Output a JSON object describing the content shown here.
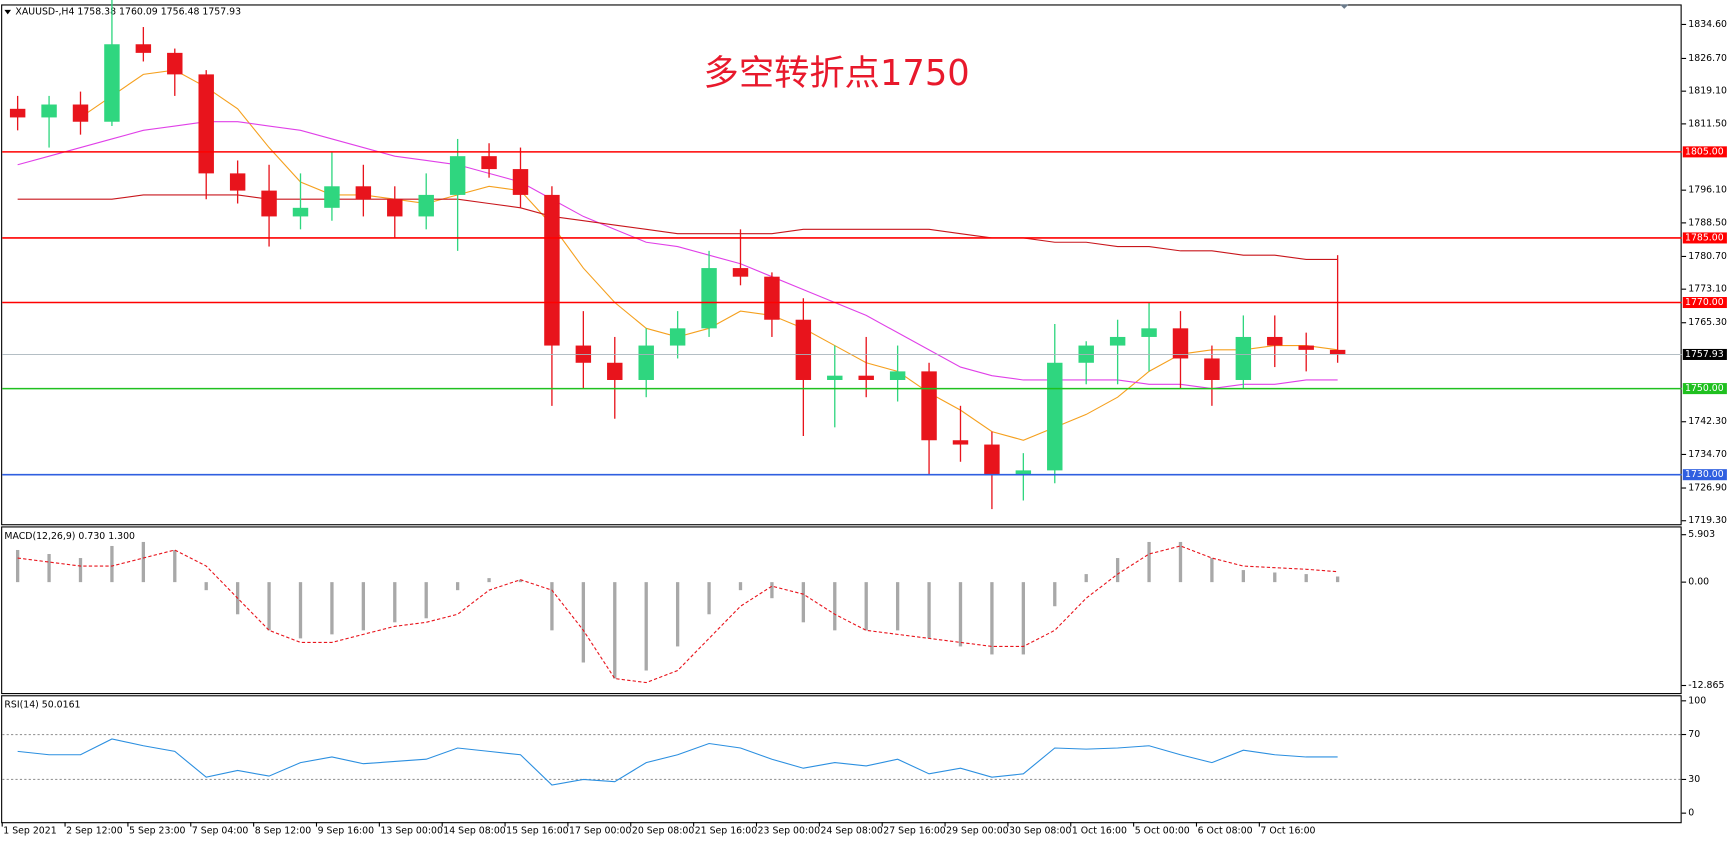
{
  "chart_data": [
    {
      "type": "candlestick",
      "title": "XAUUSD-,H4  1758.38 1760.09 1756.48 1757.93",
      "annotation": "多空转折点1750",
      "categories": [
        "1 Sep 2021",
        null,
        "2 Sep 12:00",
        null,
        "5 Sep 23:00",
        null,
        "7 Sep 04:00",
        null,
        "8 Sep 12:00",
        null,
        "9 Sep 16:00",
        null,
        "13 Sep 00:00",
        null,
        "14 Sep 08:00",
        null,
        "15 Sep 16:00",
        null,
        "17 Sep 00:00",
        null,
        "20 Sep 08:00",
        null,
        "21 Sep 16:00",
        null,
        "23 Sep 00:00",
        null,
        "24 Sep 08:00",
        null,
        "27 Sep 16:00",
        null,
        "29 Sep 00:00",
        null,
        "30 Sep 08:00",
        null,
        "1 Oct 16:00",
        null,
        "5 Oct 00:00",
        null,
        "6 Oct 08:00",
        null,
        "7 Oct 16:00",
        null,
        null
      ],
      "open": [
        1815,
        1813,
        1816,
        1812,
        1830,
        1828,
        1823,
        1800,
        1796,
        1790,
        1792,
        1797,
        1794,
        1790,
        1795,
        1804,
        1801,
        1795,
        1760,
        1756,
        1752,
        1760,
        1764,
        1778,
        1776,
        1766,
        1752,
        1753,
        1752,
        1754,
        1738,
        1737,
        1730,
        1731,
        1756,
        1760,
        1762,
        1764,
        1757,
        1752,
        1762,
        1760,
        1759
      ],
      "high": [
        1818,
        1818,
        1819,
        1842,
        1834,
        1829,
        1824,
        1803,
        1802,
        1800,
        1805,
        1802,
        1797,
        1800,
        1808,
        1807,
        1806,
        1797,
        1768,
        1762,
        1764,
        1768,
        1782,
        1787,
        1777,
        1771,
        1760,
        1762,
        1760,
        1756,
        1746,
        1740,
        1735,
        1765,
        1761,
        1766,
        1770,
        1768,
        1760,
        1767,
        1767,
        1763,
        1781
      ],
      "low": [
        1810,
        1806,
        1809,
        1811,
        1826,
        1818,
        1794,
        1793,
        1783,
        1787,
        1789,
        1790,
        1785,
        1787,
        1782,
        1799,
        1792,
        1746,
        1750,
        1743,
        1748,
        1757,
        1762,
        1774,
        1762,
        1739,
        1741,
        1748,
        1747,
        1730,
        1733,
        1722,
        1724,
        1728,
        1751,
        1751,
        1754,
        1750,
        1746,
        1750,
        1755,
        1754,
        1756
      ],
      "close": [
        1813,
        1816,
        1812,
        1830,
        1828,
        1823,
        1800,
        1796,
        1790,
        1792,
        1797,
        1794,
        1790,
        1795,
        1804,
        1801,
        1795,
        1760,
        1756,
        1752,
        1760,
        1764,
        1778,
        1776,
        1766,
        1752,
        1753,
        1752,
        1754,
        1738,
        1737,
        1730,
        1731,
        1756,
        1760,
        1762,
        1764,
        1757,
        1752,
        1762,
        1760,
        1759,
        1757.93
      ],
      "up_color": "#2fd67f",
      "down_color": "#e8141c",
      "series": [
        {
          "color": "#f5a01e",
          "values": [
            null,
            null,
            1813,
            1818,
            1823,
            1824,
            1820,
            1815,
            1806,
            1798,
            1795,
            1795,
            1794,
            1793,
            1795,
            1797,
            1796,
            1788,
            1778,
            1770,
            1764,
            1762,
            1764,
            1768,
            1767,
            1764,
            1760,
            1756,
            1754,
            1749,
            1745,
            1740,
            1738,
            1741,
            1744,
            1748,
            1754,
            1758,
            1759,
            1759,
            1760,
            1760,
            1759
          ]
        },
        {
          "color": "#e040e8",
          "values": [
            1802,
            1804,
            1806,
            1808,
            1810,
            1811,
            1812,
            1812,
            1811,
            1810,
            1808,
            1806,
            1804,
            1803,
            1802,
            1800,
            1798,
            1794,
            1790,
            1787,
            1784,
            1783,
            1781,
            1779,
            1776,
            1773,
            1770,
            1767,
            1763,
            1759,
            1755,
            1753,
            1752,
            1752,
            1752,
            1752,
            1751,
            1751,
            1750,
            1751,
            1751,
            1752,
            1752
          ]
        },
        {
          "color": "#c8161c",
          "values": [
            1794,
            1794,
            1794,
            1794,
            1795,
            1795,
            1795,
            1795,
            1794,
            1794,
            1794,
            1794,
            1794,
            1794,
            1794,
            1793,
            1792,
            1790,
            1789,
            1788,
            1787,
            1786,
            1786,
            1786,
            1786,
            1787,
            1787,
            1787,
            1787,
            1787,
            1786,
            1785,
            1785,
            1784,
            1784,
            1783,
            1783,
            1782,
            1782,
            1781,
            1781,
            1780,
            1780
          ]
        }
      ],
      "ylim": [
        1718.5,
        1839.0
      ],
      "yticks": [
        {
          "value": 1834.6,
          "label": "1834.60"
        },
        {
          "value": 1826.7,
          "label": "1826.70"
        },
        {
          "value": 1819.1,
          "label": "1819.10"
        },
        {
          "value": 1811.5,
          "label": "1811.50"
        },
        {
          "value": 1796.1,
          "label": "1796.10"
        },
        {
          "value": 1788.5,
          "label": "1788.50"
        },
        {
          "value": 1780.7,
          "label": "1780.70"
        },
        {
          "value": 1773.1,
          "label": "1773.10"
        },
        {
          "value": 1765.3,
          "label": "1765.30"
        },
        {
          "value": 1742.3,
          "label": "1742.30"
        },
        {
          "value": 1734.7,
          "label": "1734.70"
        },
        {
          "value": 1726.9,
          "label": "1726.90"
        },
        {
          "value": 1719.3,
          "label": "1719.30"
        }
      ],
      "levels": [
        {
          "value": 1805,
          "label": "1805.00",
          "color": "#ff0000",
          "line_color": "#ff0000"
        },
        {
          "value": 1785,
          "label": "1785.00",
          "color": "#ff0000",
          "line_color": "#ff0000"
        },
        {
          "value": 1770,
          "label": "1770.00",
          "color": "#ff0000",
          "line_color": "#ff0000"
        },
        {
          "value": 1757.93,
          "label": "1757.93",
          "color": "#000000",
          "line_color": "#a9b4bc"
        },
        {
          "value": 1750,
          "label": "1750.00",
          "color": "#1fc01f",
          "line_color": "#1fc01f"
        },
        {
          "value": 1730,
          "label": "1730.00",
          "color": "#2f5fe0",
          "line_color": "#2f5fe0"
        }
      ]
    },
    {
      "type": "macd",
      "title": "MACD(12,26,9) 0.730 1.300",
      "histogram": {
        "color": "#a8a8a8",
        "values": [
          4,
          3.5,
          3,
          4.5,
          5,
          4,
          -1,
          -4,
          -6,
          -7,
          -6.5,
          -6,
          -5,
          -4.5,
          -1,
          0.5,
          0.3,
          -6,
          -10,
          -12,
          -11,
          -8,
          -4,
          -1,
          -2,
          -5,
          -6,
          -6,
          -6,
          -7,
          -8,
          -9,
          -9,
          -3,
          1,
          3,
          5,
          5,
          3,
          1.5,
          1.2,
          1,
          0.7
        ]
      },
      "signal": {
        "color": "#e8141c",
        "values": [
          3,
          2.5,
          2,
          2,
          3,
          4,
          2,
          -2,
          -6,
          -7.5,
          -7.5,
          -6.5,
          -5.5,
          -5,
          -4,
          -1,
          0.3,
          -1,
          -6,
          -12,
          -12.5,
          -11,
          -7,
          -3,
          -0.5,
          -1.5,
          -4,
          -6,
          -6.5,
          -7,
          -7.5,
          -8,
          -8,
          -6,
          -2,
          1,
          3.5,
          4.5,
          3,
          2,
          1.8,
          1.6,
          1.3
        ]
      },
      "ylim": [
        -13.8,
        6.8
      ],
      "yticks": [
        5.903,
        {
          "value": 0,
          "label": "0.00"
        },
        -12.865
      ]
    },
    {
      "type": "line",
      "title": "RSI(14) 50.0161",
      "color": "#2b8fe0",
      "values": [
        55,
        52,
        52,
        66,
        60,
        55,
        32,
        38,
        33,
        45,
        50,
        44,
        46,
        48,
        58,
        55,
        52,
        25,
        30,
        28,
        45,
        52,
        62,
        58,
        48,
        40,
        45,
        42,
        48,
        35,
        40,
        32,
        35,
        58,
        57,
        58,
        60,
        52,
        45,
        56,
        52,
        50,
        50
      ],
      "ylim": [
        -8,
        104
      ],
      "yticks": [
        100,
        70,
        30,
        0
      ],
      "dashed_levels": [
        70,
        30
      ]
    }
  ]
}
